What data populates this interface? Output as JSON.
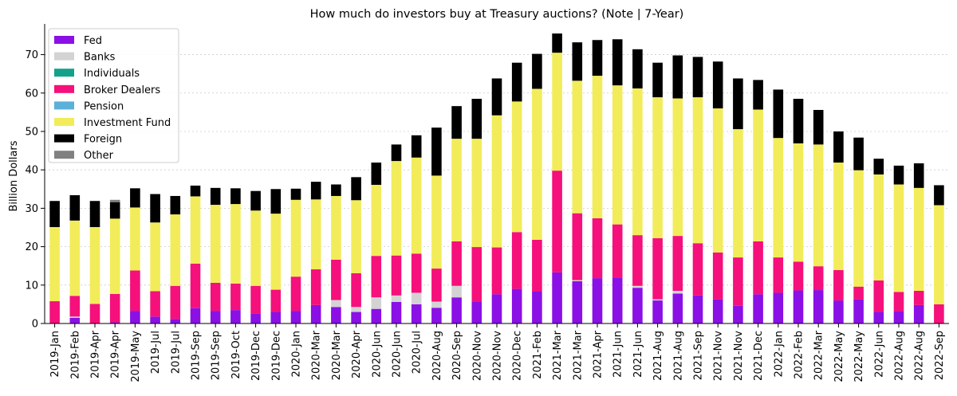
{
  "chart_data": {
    "type": "bar",
    "stacked": true,
    "title": "How much do investors buy at Treasury auctions? (Note | 7-Year)",
    "xlabel": "",
    "ylabel": "Billion Dollars",
    "ylim": [
      0,
      78
    ],
    "yticks": [
      0,
      10,
      20,
      30,
      40,
      50,
      60,
      70
    ],
    "grid": "horizontal dotted",
    "legend_position": "top-left",
    "categories": [
      "2019-Jan",
      "2019-Feb",
      "2019-Apr",
      "2019-Apr",
      "2019-May",
      "2019-Jul",
      "2019-Jul",
      "2019-Sep",
      "2019-Sep",
      "2019-Oct",
      "2019-Dec",
      "2019-Dec",
      "2020-Jan",
      "2020-Mar",
      "2020-Mar",
      "2020-Apr",
      "2020-Jun",
      "2020-Jun",
      "2020-Jul",
      "2020-Aug",
      "2020-Sep",
      "2020-Nov",
      "2020-Nov",
      "2020-Dec",
      "2021-Feb",
      "2021-Mar",
      "2021-Mar",
      "2021-Apr",
      "2021-Jun",
      "2021-Jun",
      "2021-Aug",
      "2021-Aug",
      "2021-Sep",
      "2021-Nov",
      "2021-Nov",
      "2021-Dec",
      "2022-Jan",
      "2022-Feb",
      "2022-Mar",
      "2022-May",
      "2022-May",
      "2022-Jun",
      "2022-Aug",
      "2022-Aug",
      "2022-Sep"
    ],
    "series": [
      {
        "name": "Fed",
        "color": "#8a10e6",
        "values": [
          0,
          1.5,
          0,
          0.3,
          3.3,
          1.8,
          1.2,
          4,
          3.3,
          3.5,
          2.5,
          3,
          3.3,
          4.8,
          4.3,
          3,
          3.8,
          5.6,
          5,
          4.1,
          6.8,
          5.6,
          7.6,
          9,
          8.3,
          13.3,
          11,
          11.8,
          12,
          9.3,
          6,
          7.8,
          7.3,
          6.3,
          4.6,
          7.6,
          8,
          8.6,
          8.7,
          6,
          6.3,
          3,
          3.2,
          4.8,
          0
        ]
      },
      {
        "name": "Banks",
        "color": "#d3d3d3",
        "values": [
          0,
          0.3,
          0,
          0,
          0,
          0,
          0,
          0,
          0,
          0,
          0,
          0,
          0,
          0,
          1.8,
          1.3,
          3,
          1.7,
          3,
          1.6,
          3,
          0,
          0,
          0,
          0,
          0,
          0.3,
          0,
          0,
          0.5,
          0.3,
          0.7,
          0,
          0,
          0,
          0,
          0,
          0,
          0,
          0,
          0,
          0,
          0,
          0,
          0
        ]
      },
      {
        "name": "Individuals",
        "color": "#11a28a",
        "values": [
          0,
          0,
          0,
          0,
          0,
          0,
          0,
          0,
          0,
          0,
          0,
          0,
          0,
          0,
          0,
          0,
          0,
          0,
          0,
          0,
          0,
          0,
          0,
          0,
          0,
          0,
          0,
          0,
          0,
          0,
          0,
          0,
          0,
          0,
          0,
          0,
          0,
          0,
          0,
          0,
          0,
          0,
          0,
          0,
          0
        ]
      },
      {
        "name": "Broker Dealers",
        "color": "#f5107b",
        "values": [
          5.8,
          5.4,
          5.1,
          7.4,
          10.5,
          6.6,
          8.6,
          11.6,
          7.3,
          6.9,
          7.3,
          5.8,
          8.9,
          9.3,
          10.5,
          8.8,
          10.8,
          10.4,
          10.2,
          8.6,
          11.6,
          14.3,
          12.2,
          14.8,
          13.5,
          26.5,
          17.4,
          15.6,
          13.8,
          13.2,
          15.9,
          14.3,
          13.6,
          12.2,
          12.6,
          13.8,
          9.2,
          7.5,
          6.2,
          7.9,
          3.3,
          8.2,
          5,
          3.7,
          5
        ]
      },
      {
        "name": "Pension",
        "color": "#5ab0d8",
        "values": [
          0,
          0,
          0,
          0,
          0,
          0,
          0,
          0,
          0,
          0,
          0,
          0,
          0,
          0,
          0,
          0,
          0,
          0,
          0,
          0,
          0,
          0,
          0,
          0,
          0,
          0,
          0,
          0,
          0,
          0,
          0,
          0,
          0,
          0,
          0,
          0,
          0,
          0,
          0,
          0,
          0,
          0,
          0,
          0,
          0
        ]
      },
      {
        "name": "Investment Fund",
        "color": "#f2ec5a",
        "values": [
          19.3,
          19.6,
          20,
          19.6,
          16.4,
          17.9,
          18.6,
          17.5,
          20.3,
          20.7,
          19.6,
          19.8,
          20,
          18.2,
          16.6,
          19,
          18.5,
          24.6,
          25,
          24.2,
          26.7,
          28.2,
          34.4,
          34,
          39.3,
          30.7,
          34.5,
          37.1,
          36.2,
          38.2,
          36.7,
          35.8,
          38,
          37.5,
          33.4,
          34.3,
          31.1,
          30.8,
          31.7,
          28,
          30.3,
          27.6,
          28,
          26.8,
          25.8
        ]
      },
      {
        "name": "Foreign",
        "color": "#000000",
        "values": [
          6.8,
          6.6,
          6.8,
          4.3,
          5,
          7.4,
          4.8,
          2.8,
          4.4,
          4.1,
          5.1,
          6.4,
          2.9,
          4.6,
          3,
          6,
          5.8,
          4.3,
          5.8,
          12.5,
          8.5,
          10.4,
          9.6,
          10.1,
          9.1,
          5,
          10,
          9.3,
          12,
          10.2,
          9,
          11.2,
          10.5,
          12.2,
          13.2,
          7.7,
          12.6,
          11.6,
          9,
          8.1,
          8.5,
          4.1,
          4.9,
          6.4,
          5.2
        ]
      },
      {
        "name": "Other",
        "color": "#808080",
        "values": [
          0,
          0,
          0,
          0.6,
          0,
          0,
          0,
          0,
          0,
          0,
          0,
          0,
          0,
          0,
          0,
          0,
          0,
          0,
          0,
          0,
          0,
          0,
          0,
          0,
          0,
          0,
          0,
          0,
          0,
          0,
          0,
          0,
          0,
          0,
          0,
          0,
          0,
          0,
          0,
          0,
          0,
          0,
          0,
          0,
          0
        ]
      }
    ]
  }
}
